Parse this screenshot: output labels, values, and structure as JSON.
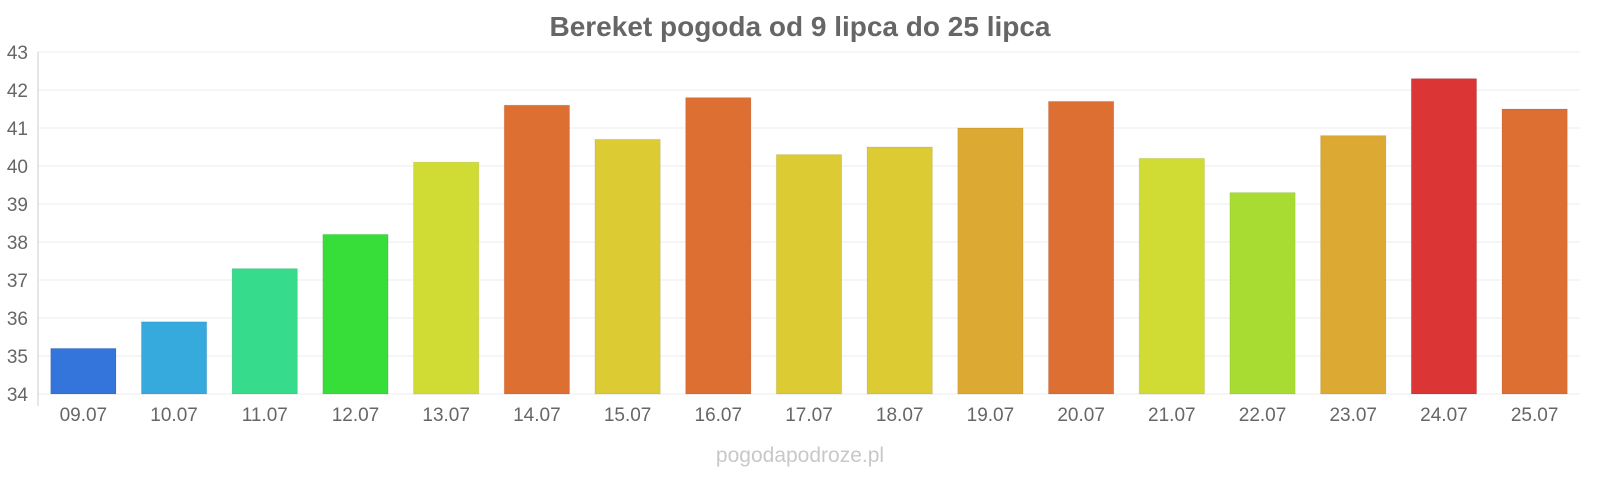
{
  "chart_data": {
    "type": "bar",
    "title": "Bereket pogoda od 9 lipca do 25 lipca",
    "xlabel": "",
    "ylabel": "",
    "ylim": [
      34,
      43
    ],
    "yticks": [
      "34",
      "35",
      "36",
      "37",
      "38",
      "39",
      "40",
      "41",
      "42",
      "43"
    ],
    "grid": true,
    "categories": [
      "09.07",
      "10.07",
      "11.07",
      "12.07",
      "13.07",
      "14.07",
      "15.07",
      "16.07",
      "17.07",
      "18.07",
      "19.07",
      "20.07",
      "21.07",
      "22.07",
      "23.07",
      "24.07",
      "25.07"
    ],
    "values": [
      35.2,
      35.9,
      37.3,
      38.2,
      40.1,
      41.6,
      40.7,
      41.8,
      40.3,
      40.5,
      41.0,
      41.7,
      40.2,
      39.3,
      40.8,
      42.3,
      41.5
    ],
    "colors": [
      "#3375db",
      "#36a9dd",
      "#36dc8b",
      "#37de3a",
      "#d0dc33",
      "#de6f33",
      "#dccb33",
      "#de6f33",
      "#dccb33",
      "#dccb33",
      "#dca933",
      "#de6f33",
      "#d0dc33",
      "#a9dc33",
      "#dca933",
      "#dc3535",
      "#de6f33"
    ]
  },
  "watermark": "pogodapodroze.pl"
}
